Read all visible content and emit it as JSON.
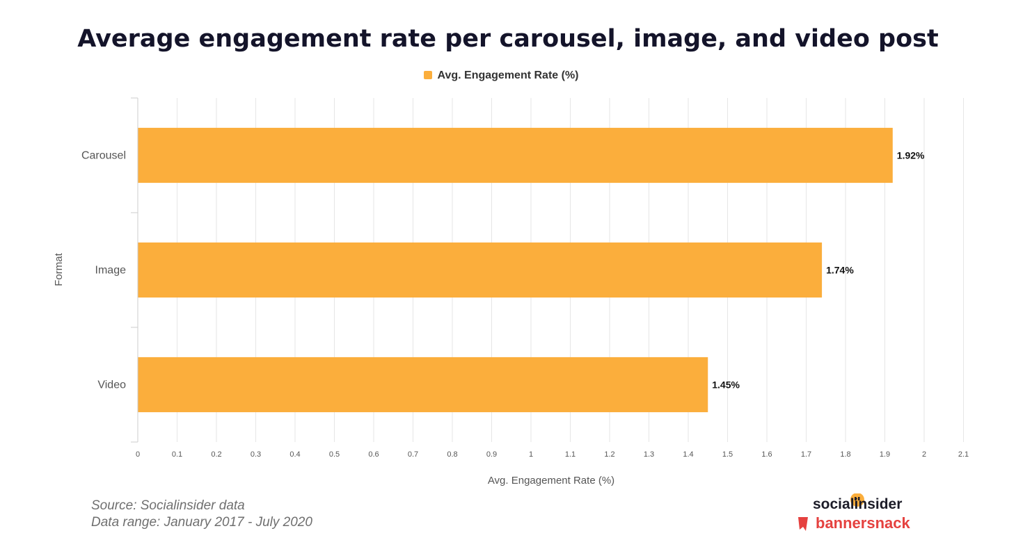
{
  "title": "Average engagement rate per carousel, image, and video post",
  "colors": {
    "bar": "#FBAE3C",
    "grid": "#e6e6e6",
    "axis": "#cccccc",
    "title": "#14142a",
    "brand_red": "#e5413f"
  },
  "chart_data": {
    "type": "bar",
    "orientation": "horizontal",
    "categories": [
      "Carousel",
      "Image",
      "Video"
    ],
    "values": [
      1.92,
      1.74,
      1.45
    ],
    "data_labels": [
      "1.92%",
      "1.74%",
      "1.45%"
    ],
    "series_name": "Avg. Engagement Rate (%)",
    "xlabel": "Avg. Engagement Rate (%)",
    "ylabel": "Format",
    "xlim": [
      0,
      2.1
    ],
    "xticks": [
      0,
      0.1,
      0.2,
      0.3,
      0.4,
      0.5,
      0.6,
      0.7,
      0.8,
      0.9,
      1,
      1.1,
      1.2,
      1.3,
      1.4,
      1.5,
      1.6,
      1.7,
      1.8,
      1.9,
      2,
      2.1
    ],
    "grid": true,
    "legend_position": "top-center"
  },
  "footer": {
    "source": "Source: Socialinsider data",
    "range": "Data range: January 2017 - July 2020"
  },
  "brand": {
    "socialinsider": "socialinsider",
    "bannersnack": "bannersnack"
  }
}
